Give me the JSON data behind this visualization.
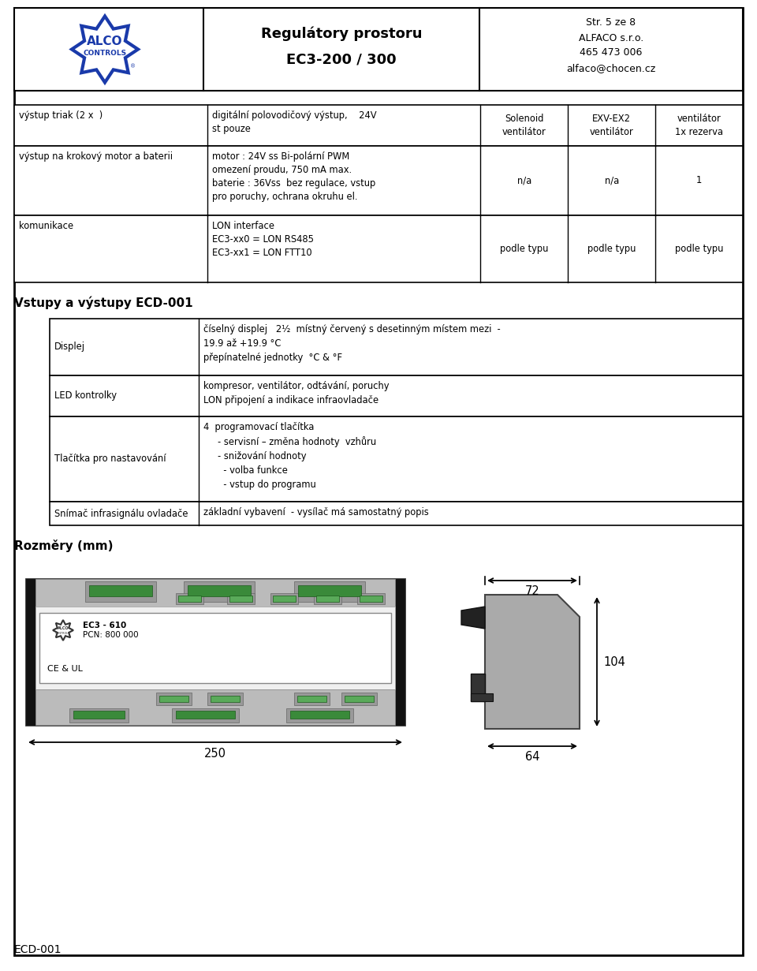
{
  "page_width": 9.6,
  "page_height": 12.31,
  "bg_color": "#ffffff",
  "header": {
    "title_line1": "Regulátory prostoru",
    "title_line2": "EC3-200 / 300",
    "info_line1": "Str. 5 ze 8",
    "info_line2": "ALFACO s.r.o.",
    "info_line3": "465 473 006",
    "info_line4": "alfaco@chocen.cz"
  },
  "table1_rows": [
    {
      "col0": "výstup triak (2 x  )",
      "col1": "digitální polovodičový výstup,    24V\nst pouze",
      "col2": "Solenoid\nventilátor",
      "col3": "EXV-EX2\nventilátor",
      "col4": "ventilátor\n1x rezerva"
    },
    {
      "col0": "výstup na krokový motor a baterii",
      "col1": "motor : 24V ss Bi-polární PWM\nomezení proudu, 750 mA max.\nbaterie : 36Vss  bez regulace, vstup\npro poruchy, ochrana okruhu el.",
      "col2": "n/a",
      "col3": "n/a",
      "col4": "1"
    },
    {
      "col0": "komunikace",
      "col1": "LON interface\nEC3-xx0 = LON RS485\nEC3-xx1 = LON FTT10",
      "col2": "podle typu",
      "col3": "podle typu",
      "col4": "podle typu"
    }
  ],
  "section2_title": "Vstupy a výstupy ECD-001",
  "table2_rows": [
    {
      "col0": "Displej",
      "col1": "číselný displej   2½  místný červený s desetinným místem mezi  -\n19.9 až +19.9 °C\npřepínatelné jednotky  °C & °F"
    },
    {
      "col0": "LED kontrolky",
      "col1": "kompresor, ventilátor, odtávání, poruchy\nLON připojení a indikace infraovladače"
    },
    {
      "col0": "Tlačítka pro nastavování",
      "col1": "4  programovací tlačítka\n     - servisní – změna hodnoty  vzhůru\n     - snižování hodnoty\n       - volba funkce\n       - vstup do programu"
    },
    {
      "col0": "Snímač infrasignálu ovladače",
      "col1": "základní vybavení  - vysílač má samostatný popis"
    }
  ],
  "section3_title": "Rozměry (mm)",
  "footer_text": "ECD-001",
  "dim_72": "72",
  "dim_104": "104",
  "dim_250": "250",
  "dim_64": "64",
  "logo_blue": "#1a3aaa",
  "green_connector": "#3a8a3a",
  "green_connector2": "#5aaa5a",
  "device_gray": "#aaaaaa",
  "device_dark": "#888888",
  "device_black": "#222222",
  "connector_gray": "#999999"
}
